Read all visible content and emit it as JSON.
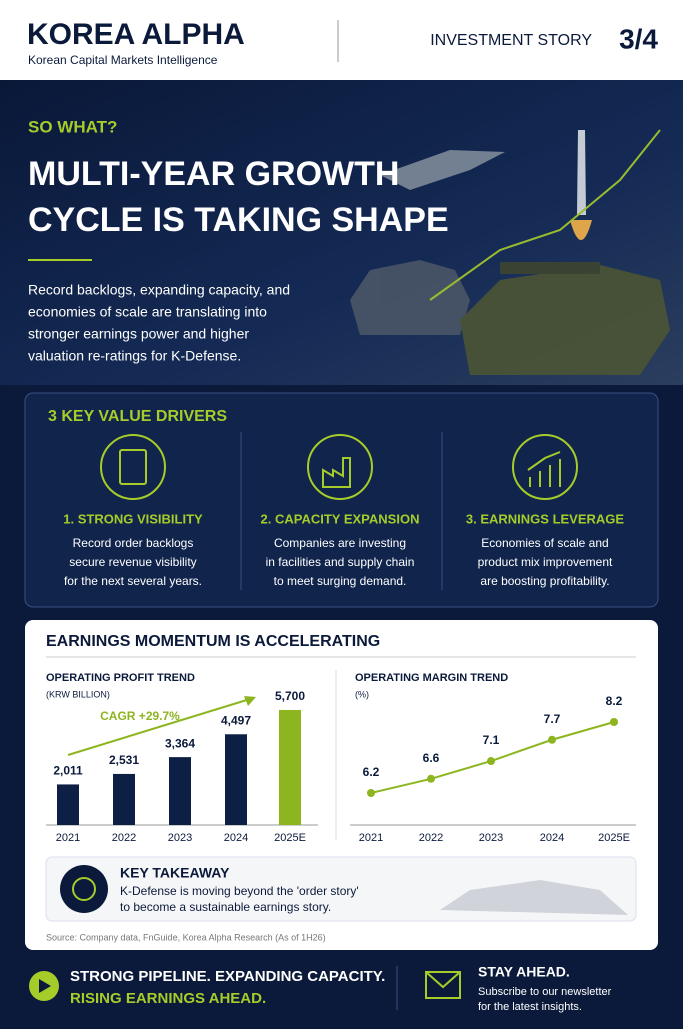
{
  "header": {
    "brand": "KOREA ALPHA",
    "tagline": "Korean Capital Markets Intelligence",
    "section": "INVESTMENT STORY",
    "page": "3/4"
  },
  "hero": {
    "kicker": "SO WHAT?",
    "title": [
      "MULTI-YEAR GROWTH",
      "CYCLE IS TAKING SHAPE"
    ],
    "body": [
      "Record backlogs, expanding capacity, and",
      "economies of scale are translating into",
      "stronger earnings power and higher",
      "valuation re-ratings for K-Defense."
    ]
  },
  "drivers": {
    "title": "3 KEY VALUE DRIVERS",
    "items": [
      {
        "name": "1. STRONG VISIBILITY",
        "text": [
          "Record order backlogs",
          "secure revenue visibility",
          "for the next several years."
        ]
      },
      {
        "name": "2. CAPACITY EXPANSION",
        "text": [
          "Companies are investing",
          "in facilities and supply chain",
          "to meet surging demand."
        ]
      },
      {
        "name": "3. EARNINGS LEVERAGE",
        "text": [
          "Economies of scale and",
          "product mix improvement",
          "are boosting profitability."
        ]
      }
    ]
  },
  "earnings": {
    "title": "EARNINGS MOMENTUM IS ACCELERATING",
    "takeaway": {
      "title": "KEY TAKEAWAY",
      "text": [
        "K-Defense is moving beyond the 'order story'",
        "to become a sustainable earnings story."
      ]
    },
    "source": "Source: Company data, FnGuide, Korea Alpha Research (As of 1H26)"
  },
  "chart_data": [
    {
      "type": "bar",
      "title": "OPERATING PROFIT TREND",
      "subtitle": "(KRW BILLION)",
      "categories": [
        "2021",
        "2022",
        "2023",
        "2024",
        "2025E"
      ],
      "values": [
        2011,
        2531,
        3364,
        4497,
        5700
      ],
      "value_labels": [
        "2,011",
        "2,531",
        "3,364",
        "4,497",
        "5,700"
      ],
      "colors": [
        "#0d1f45",
        "#0d1f45",
        "#0d1f45",
        "#0d1f45",
        "#8db51f"
      ],
      "annotation": "CAGR +29.7%"
    },
    {
      "type": "line",
      "title": "OPERATING MARGIN TREND",
      "subtitle": "(%)",
      "categories": [
        "2021",
        "2022",
        "2023",
        "2024",
        "2025E"
      ],
      "values": [
        6.2,
        6.6,
        7.1,
        7.7,
        8.2
      ],
      "color": "#8db51f"
    }
  ],
  "footer": {
    "line1": "STRONG PIPELINE. EXPANDING CAPACITY.",
    "line2": "RISING EARNINGS AHEAD.",
    "cta": "STAY AHEAD.",
    "cta_text": [
      "Subscribe to our newsletter",
      "for the latest insights."
    ]
  }
}
